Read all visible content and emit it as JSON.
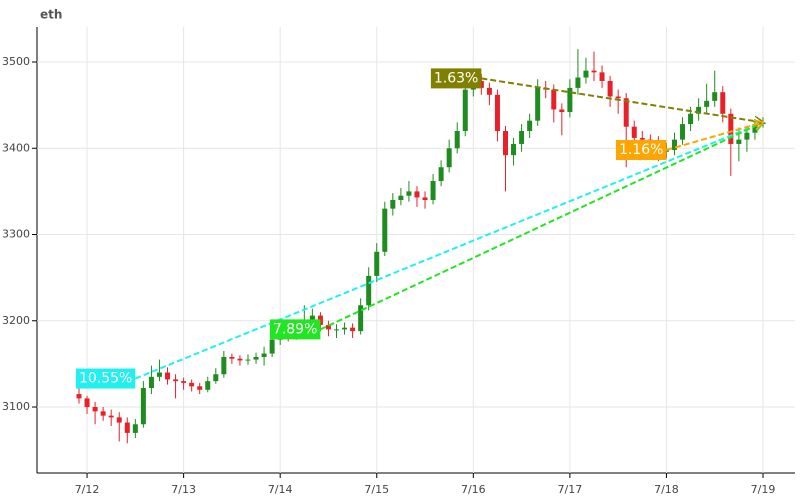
{
  "chart_data": {
    "type": "candlestick",
    "title": "eth",
    "categories": [
      null,
      "7/12",
      null,
      null,
      null,
      null,
      null,
      null,
      null,
      null,
      null,
      null,
      null,
      "7/13",
      null,
      null,
      null,
      null,
      null,
      null,
      null,
      null,
      null,
      null,
      null,
      "7/14",
      null,
      null,
      null,
      null,
      null,
      null,
      null,
      null,
      null,
      null,
      null,
      "7/15",
      null,
      null,
      null,
      null,
      null,
      null,
      null,
      null,
      null,
      null,
      null,
      "7/16",
      null,
      null,
      null,
      null,
      null,
      null,
      null,
      null,
      null,
      null,
      null,
      "7/17",
      null,
      null,
      null,
      null,
      null,
      null,
      null,
      null,
      null,
      null,
      null,
      "7/18",
      null,
      null,
      null,
      null,
      null,
      null,
      null,
      null,
      null,
      null,
      null,
      "7/19"
    ],
    "open": [
      3115,
      3110,
      3100,
      3095,
      3090,
      3088,
      3082,
      3070,
      3080,
      3122,
      3135,
      3140,
      3132,
      3130,
      3128,
      3124,
      3120,
      3130,
      3138,
      3158,
      3156,
      3154,
      3155,
      3158,
      3162,
      3178,
      3184,
      3182,
      3192,
      3200,
      3206,
      3195,
      3190,
      3190,
      3192,
      3188,
      3218,
      3252,
      3280,
      3330,
      3340,
      3345,
      3350,
      3343,
      3340,
      3362,
      3378,
      3400,
      3420,
      3468,
      3478,
      3470,
      3462,
      3420,
      3392,
      3405,
      3420,
      3432,
      3470,
      3468,
      3445,
      3442,
      3470,
      3482,
      3490,
      3488,
      3478,
      3460,
      3458,
      3425,
      3412,
      3410,
      3408,
      3396,
      3398,
      3410,
      3428,
      3440,
      3448,
      3455,
      3465,
      3440,
      3405,
      3410,
      3418,
      3428
    ],
    "high": [
      3122,
      3113,
      3106,
      3100,
      3097,
      3094,
      3088,
      3086,
      3130,
      3148,
      3155,
      3146,
      3138,
      3134,
      3132,
      3128,
      3135,
      3145,
      3165,
      3162,
      3160,
      3161,
      3163,
      3170,
      3185,
      3192,
      3190,
      3200,
      3218,
      3214,
      3210,
      3200,
      3196,
      3198,
      3197,
      3226,
      3262,
      3290,
      3338,
      3348,
      3354,
      3362,
      3356,
      3350,
      3370,
      3386,
      3410,
      3430,
      3478,
      3492,
      3486,
      3476,
      3468,
      3426,
      3412,
      3428,
      3440,
      3480,
      3478,
      3474,
      3452,
      3480,
      3515,
      3505,
      3512,
      3496,
      3484,
      3468,
      3464,
      3432,
      3420,
      3416,
      3414,
      3406,
      3418,
      3436,
      3448,
      3458,
      3475,
      3490,
      3472,
      3446,
      3424,
      3426,
      3434,
      3436
    ],
    "low": [
      3104,
      3092,
      3080,
      3084,
      3078,
      3060,
      3058,
      3064,
      3076,
      3115,
      3130,
      3126,
      3110,
      3120,
      3118,
      3115,
      3117,
      3127,
      3134,
      3150,
      3148,
      3149,
      3150,
      3148,
      3158,
      3172,
      3176,
      3178,
      3186,
      3195,
      3188,
      3182,
      3180,
      3184,
      3180,
      3184,
      3212,
      3245,
      3275,
      3322,
      3334,
      3338,
      3332,
      3330,
      3335,
      3356,
      3372,
      3394,
      3414,
      3460,
      3462,
      3450,
      3408,
      3350,
      3380,
      3396,
      3412,
      3426,
      3458,
      3430,
      3415,
      3436,
      3462,
      3475,
      3478,
      3470,
      3448,
      3440,
      3378,
      3400,
      3400,
      3398,
      3385,
      3388,
      3392,
      3404,
      3420,
      3432,
      3440,
      3448,
      3430,
      3368,
      3385,
      3396,
      3410,
      3424
    ],
    "close": [
      3110,
      3100,
      3095,
      3090,
      3088,
      3082,
      3070,
      3080,
      3122,
      3135,
      3140,
      3132,
      3130,
      3128,
      3124,
      3120,
      3130,
      3138,
      3158,
      3156,
      3154,
      3155,
      3158,
      3162,
      3178,
      3184,
      3182,
      3192,
      3200,
      3206,
      3195,
      3190,
      3190,
      3192,
      3188,
      3218,
      3252,
      3280,
      3330,
      3340,
      3345,
      3350,
      3343,
      3340,
      3362,
      3378,
      3400,
      3420,
      3468,
      3478,
      3470,
      3462,
      3420,
      3392,
      3405,
      3420,
      3432,
      3470,
      3468,
      3445,
      3442,
      3470,
      3482,
      3490,
      3488,
      3478,
      3460,
      3458,
      3425,
      3412,
      3410,
      3408,
      3396,
      3398,
      3410,
      3428,
      3440,
      3448,
      3455,
      3465,
      3440,
      3405,
      3410,
      3418,
      3428,
      3430
    ],
    "up_color": "#1e8c1e",
    "down_color": "#e8202a",
    "ylim": [
      3023.5,
      3540.6
    ],
    "yticks": [
      3100,
      3200,
      3300,
      3400,
      3500
    ],
    "grid": true,
    "annotations": [
      {
        "label": "10.55%",
        "color": "#22f0f0",
        "from": [
          7,
          3133
        ],
        "to": [
          85,
          3430
        ]
      },
      {
        "label": "7.89%",
        "color": "#22e622",
        "from": [
          30,
          3190
        ],
        "to": [
          85,
          3430
        ]
      },
      {
        "label": "1.63%",
        "color": "#808000",
        "from": [
          50,
          3481
        ],
        "to": [
          85,
          3430
        ]
      },
      {
        "label": "1.16%",
        "color": "#ffa500",
        "from": [
          73,
          3398
        ],
        "to": [
          85,
          3430
        ]
      }
    ]
  }
}
